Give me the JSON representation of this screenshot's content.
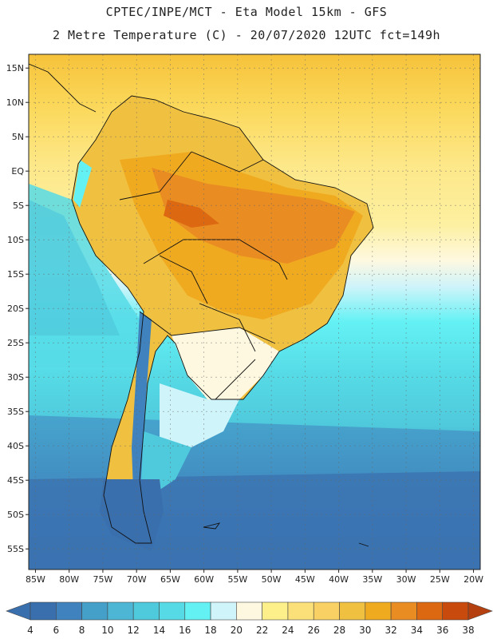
{
  "header": {
    "line1": "CPTEC/INPE/MCT  -   Eta Model 15km  -  GFS",
    "line2": "2 Metre Temperature (C) - 20/07/2020 12UTC fct=149h"
  },
  "map": {
    "lat_ticks": [
      "15N",
      "10N",
      "5N",
      "EQ",
      "5S",
      "10S",
      "15S",
      "20S",
      "25S",
      "30S",
      "35S",
      "40S",
      "45S",
      "50S",
      "55S"
    ],
    "lat_values": [
      15,
      10,
      5,
      0,
      -5,
      -10,
      -15,
      -20,
      -25,
      -30,
      -35,
      -40,
      -45,
      -50,
      -55
    ],
    "lon_ticks": [
      "85W",
      "80W",
      "75W",
      "70W",
      "65W",
      "60W",
      "55W",
      "50W",
      "45W",
      "40W",
      "35W",
      "30W",
      "25W",
      "20W"
    ],
    "lon_values": [
      -85,
      -80,
      -75,
      -70,
      -65,
      -60,
      -55,
      -50,
      -45,
      -40,
      -35,
      -30,
      -25,
      -20
    ],
    "lat_range": [
      -58,
      17
    ],
    "lon_range": [
      -86,
      -19
    ]
  },
  "colorbar": {
    "labels": [
      "4",
      "6",
      "8",
      "10",
      "12",
      "14",
      "16",
      "18",
      "20",
      "22",
      "24",
      "26",
      "28",
      "30",
      "32",
      "34",
      "36",
      "38"
    ],
    "colors": [
      "#3a6fae",
      "#3f82bd",
      "#45a0c9",
      "#4cb6d4",
      "#4fc9dc",
      "#56dbe6",
      "#63f1f4",
      "#cff4fa",
      "#fef8e0",
      "#fdf08a",
      "#fbe07a",
      "#f8d064",
      "#f0c040",
      "#f0aa20",
      "#e98c22",
      "#dd6812",
      "#c84a0c"
    ],
    "left_arrow_color": "#3a6fae",
    "right_arrow_color": "#b5400f"
  }
}
